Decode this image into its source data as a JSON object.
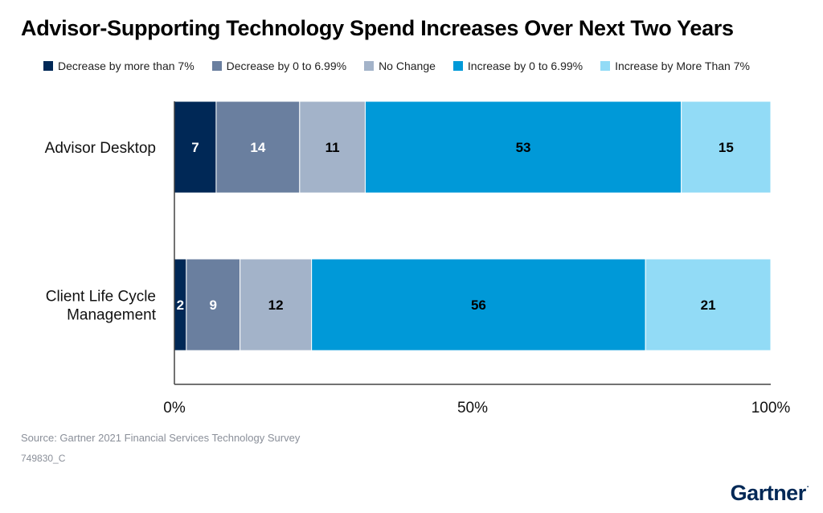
{
  "title": "Advisor-Supporting Technology Spend Increases Over Next Two Years",
  "legend": [
    {
      "label": "Decrease by more than 7%",
      "color": "#002856"
    },
    {
      "label": "Decrease by 0 to 6.99%",
      "color": "#6a7f9f"
    },
    {
      "label": "No Change",
      "color": "#a3b3c9"
    },
    {
      "label": "Increase by 0 to 6.99%",
      "color": "#0099d8"
    },
    {
      "label": "Increase by More Than 7%",
      "color": "#92dbf6"
    }
  ],
  "chart_data": {
    "type": "bar",
    "orientation": "horizontal",
    "stacked": true,
    "categories": [
      "Advisor Desktop",
      "Client Life Cycle Management"
    ],
    "category_lines": [
      [
        "Advisor Desktop"
      ],
      [
        "Client Life Cycle",
        "Management"
      ]
    ],
    "series": [
      {
        "name": "Decrease by more than 7%",
        "values": [
          7,
          2
        ],
        "color": "#002856",
        "label_color": "#ffffff"
      },
      {
        "name": "Decrease by 0 to 6.99%",
        "values": [
          14,
          9
        ],
        "color": "#6a7f9f",
        "label_color": "#ffffff"
      },
      {
        "name": "No Change",
        "values": [
          11,
          12
        ],
        "color": "#a3b3c9",
        "label_color": "#000000"
      },
      {
        "name": "Increase by 0 to 6.99%",
        "values": [
          53,
          56
        ],
        "color": "#0099d8",
        "label_color": "#000000"
      },
      {
        "name": "Increase by More Than 7%",
        "values": [
          15,
          21
        ],
        "color": "#92dbf6",
        "label_color": "#000000"
      }
    ],
    "xlim": [
      0,
      100
    ],
    "x_ticks": [
      0,
      50,
      100
    ],
    "x_tick_labels": [
      "0%",
      "50%",
      "100%"
    ],
    "title": "Advisor-Supporting Technology Spend Increases Over Next Two Years",
    "xlabel": "",
    "ylabel": "",
    "legend_position": "top"
  },
  "footer": {
    "source": "Source: Gartner 2021 Financial Services Technology Survey",
    "code": "749830_C",
    "brand": "Gartner",
    "brand_mark": "."
  }
}
